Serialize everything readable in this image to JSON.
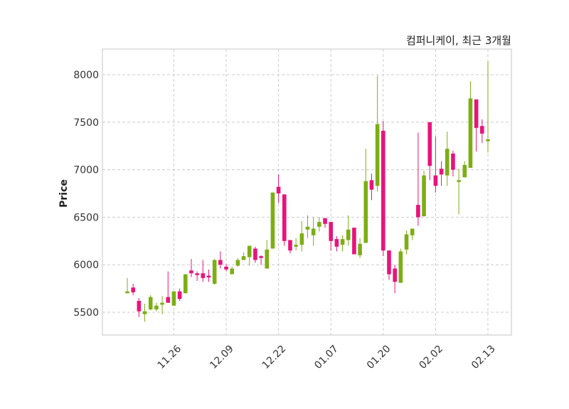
{
  "chart_data": {
    "type": "candlestick",
    "title": "컴퍼니케이, 최근 3개월",
    "xlabel": "",
    "ylabel": "Price",
    "ylim": [
      5270,
      8270
    ],
    "yticks": [
      5500,
      6000,
      6500,
      7000,
      7500,
      8000
    ],
    "xtick_labels": [
      {
        "index": 8,
        "label": "11.26"
      },
      {
        "index": 17,
        "label": "12.09"
      },
      {
        "index": 26,
        "label": "12.22"
      },
      {
        "index": 35,
        "label": "01.07"
      },
      {
        "index": 44,
        "label": "01.20"
      },
      {
        "index": 53,
        "label": "02.02"
      },
      {
        "index": 62,
        "label": "02.13"
      }
    ],
    "grid": true,
    "colors": {
      "up": "#7cae14",
      "down": "#e8137b",
      "grid": "#cccccc"
    },
    "ohlc": [
      [
        5700,
        5860,
        5700,
        5720
      ],
      [
        5760,
        5800,
        5680,
        5710
      ],
      [
        5620,
        5650,
        5450,
        5510
      ],
      [
        5480,
        5590,
        5400,
        5510
      ],
      [
        5530,
        5680,
        5520,
        5660
      ],
      [
        5530,
        5600,
        5510,
        5570
      ],
      [
        5580,
        5670,
        5480,
        5600
      ],
      [
        5660,
        5930,
        5600,
        5600
      ],
      [
        5570,
        5720,
        5570,
        5720
      ],
      [
        5720,
        5750,
        5620,
        5640
      ],
      [
        5700,
        5900,
        5700,
        5900
      ],
      [
        5940,
        6060,
        5870,
        5910
      ],
      [
        5910,
        5930,
        5830,
        5900
      ],
      [
        5910,
        6050,
        5820,
        5860
      ],
      [
        5885,
        5950,
        5820,
        5880
      ],
      [
        5800,
        6060,
        5790,
        6050
      ],
      [
        6050,
        6140,
        5960,
        6000
      ],
      [
        5980,
        6010,
        5930,
        5950
      ],
      [
        5900,
        5980,
        5900,
        5960
      ],
      [
        5990,
        6070,
        5980,
        6050
      ],
      [
        6050,
        6130,
        6050,
        6090
      ],
      [
        6080,
        6200,
        5990,
        6200
      ],
      [
        6170,
        6190,
        6020,
        6050
      ],
      [
        6090,
        6100,
        6000,
        6080
      ],
      [
        5960,
        6260,
        5960,
        6160
      ],
      [
        6170,
        6760,
        6170,
        6760
      ],
      [
        6820,
        6950,
        6650,
        6750
      ],
      [
        6740,
        6740,
        6200,
        6250
      ],
      [
        6260,
        6260,
        6120,
        6150
      ],
      [
        6190,
        6280,
        6150,
        6210
      ],
      [
        6210,
        6460,
        6140,
        6330
      ],
      [
        6370,
        6520,
        6280,
        6400
      ],
      [
        6310,
        6500,
        6200,
        6380
      ],
      [
        6400,
        6500,
        6350,
        6450
      ],
      [
        6490,
        6490,
        6390,
        6430
      ],
      [
        6450,
        6450,
        6150,
        6250
      ],
      [
        6270,
        6300,
        6140,
        6190
      ],
      [
        6210,
        6310,
        6140,
        6270
      ],
      [
        6260,
        6520,
        6200,
        6370
      ],
      [
        6390,
        6390,
        6110,
        6110
      ],
      [
        6100,
        6280,
        6070,
        6220
      ],
      [
        6230,
        7220,
        6230,
        6880
      ],
      [
        6890,
        6960,
        6680,
        6790
      ],
      [
        6830,
        7990,
        6770,
        7480
      ],
      [
        7410,
        7510,
        6090,
        6150
      ],
      [
        6150,
        6150,
        5840,
        5900
      ],
      [
        5960,
        6000,
        5700,
        5820
      ],
      [
        5810,
        6170,
        5810,
        6140
      ],
      [
        6160,
        6360,
        6110,
        6320
      ],
      [
        6310,
        6380,
        6260,
        6380
      ],
      [
        6630,
        7390,
        6410,
        6500
      ],
      [
        6510,
        6990,
        6510,
        6940
      ],
      [
        7500,
        7500,
        6890,
        7040
      ],
      [
        6940,
        7350,
        6760,
        6830
      ],
      [
        7010,
        7090,
        6830,
        6950
      ],
      [
        6940,
        7400,
        6830,
        7220
      ],
      [
        7170,
        7200,
        6930,
        7000
      ],
      [
        6880,
        7010,
        6530,
        6890
      ],
      [
        6920,
        7090,
        6920,
        7050
      ],
      [
        7020,
        7930,
        7020,
        7750
      ],
      [
        7740,
        7740,
        7190,
        7440
      ],
      [
        7460,
        7530,
        7280,
        7380
      ],
      [
        7300,
        8140,
        7180,
        7320
      ]
    ]
  }
}
